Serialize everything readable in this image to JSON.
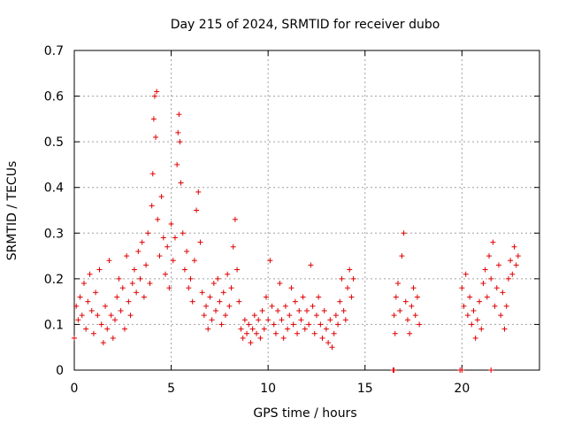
{
  "chart_data": {
    "type": "scatter",
    "title": "Day 215 of 2024, SRMTID for receiver dubo",
    "xlabel": "GPS time / hours",
    "ylabel": "SRMTID / TECUs",
    "xlim": [
      0,
      24
    ],
    "ylim": [
      0,
      0.7
    ],
    "xticks": [
      0,
      5,
      10,
      15,
      20
    ],
    "yticks": [
      0,
      0.1,
      0.2,
      0.3,
      0.4,
      0.5,
      0.6,
      0.7
    ],
    "xtick_labels": [
      "0",
      "5",
      "10",
      "15",
      "20"
    ],
    "ytick_labels": [
      "0",
      "0.1",
      "0.2",
      "0.3",
      "0.4",
      "0.5",
      "0.6",
      "0.7"
    ],
    "grid": true,
    "marker": "+",
    "series_color": "#e00000",
    "series": [
      {
        "name": "SRMTID",
        "points": [
          [
            0.0,
            0.07
          ],
          [
            0.1,
            0.14
          ],
          [
            0.2,
            0.11
          ],
          [
            0.3,
            0.16
          ],
          [
            0.4,
            0.12
          ],
          [
            0.5,
            0.19
          ],
          [
            0.6,
            0.09
          ],
          [
            0.7,
            0.15
          ],
          [
            0.8,
            0.21
          ],
          [
            0.9,
            0.13
          ],
          [
            1.0,
            0.08
          ],
          [
            1.1,
            0.17
          ],
          [
            1.2,
            0.12
          ],
          [
            1.3,
            0.22
          ],
          [
            1.4,
            0.1
          ],
          [
            1.5,
            0.06
          ],
          [
            1.6,
            0.14
          ],
          [
            1.7,
            0.09
          ],
          [
            1.8,
            0.24
          ],
          [
            1.9,
            0.12
          ],
          [
            2.0,
            0.07
          ],
          [
            2.1,
            0.11
          ],
          [
            2.2,
            0.16
          ],
          [
            2.3,
            0.2
          ],
          [
            2.4,
            0.13
          ],
          [
            2.5,
            0.18
          ],
          [
            2.6,
            0.09
          ],
          [
            2.7,
            0.25
          ],
          [
            2.8,
            0.15
          ],
          [
            2.9,
            0.12
          ],
          [
            3.0,
            0.19
          ],
          [
            3.1,
            0.22
          ],
          [
            3.2,
            0.17
          ],
          [
            3.3,
            0.26
          ],
          [
            3.4,
            0.2
          ],
          [
            3.5,
            0.28
          ],
          [
            3.6,
            0.16
          ],
          [
            3.7,
            0.23
          ],
          [
            3.8,
            0.3
          ],
          [
            3.9,
            0.19
          ],
          [
            4.0,
            0.36
          ],
          [
            4.05,
            0.43
          ],
          [
            4.1,
            0.55
          ],
          [
            4.15,
            0.6
          ],
          [
            4.2,
            0.51
          ],
          [
            4.25,
            0.61
          ],
          [
            4.3,
            0.33
          ],
          [
            4.4,
            0.25
          ],
          [
            4.5,
            0.38
          ],
          [
            4.6,
            0.29
          ],
          [
            4.7,
            0.21
          ],
          [
            4.8,
            0.27
          ],
          [
            4.9,
            0.18
          ],
          [
            5.0,
            0.32
          ],
          [
            5.1,
            0.24
          ],
          [
            5.2,
            0.29
          ],
          [
            5.3,
            0.45
          ],
          [
            5.35,
            0.52
          ],
          [
            5.4,
            0.56
          ],
          [
            5.45,
            0.5
          ],
          [
            5.5,
            0.41
          ],
          [
            5.6,
            0.3
          ],
          [
            5.7,
            0.22
          ],
          [
            5.8,
            0.26
          ],
          [
            5.9,
            0.18
          ],
          [
            6.0,
            0.2
          ],
          [
            6.1,
            0.15
          ],
          [
            6.2,
            0.24
          ],
          [
            6.3,
            0.35
          ],
          [
            6.4,
            0.39
          ],
          [
            6.5,
            0.28
          ],
          [
            6.6,
            0.17
          ],
          [
            6.7,
            0.12
          ],
          [
            6.8,
            0.14
          ],
          [
            6.9,
            0.09
          ],
          [
            7.0,
            0.16
          ],
          [
            7.1,
            0.11
          ],
          [
            7.2,
            0.19
          ],
          [
            7.3,
            0.13
          ],
          [
            7.4,
            0.2
          ],
          [
            7.5,
            0.15
          ],
          [
            7.6,
            0.1
          ],
          [
            7.7,
            0.17
          ],
          [
            7.8,
            0.12
          ],
          [
            7.9,
            0.21
          ],
          [
            8.0,
            0.14
          ],
          [
            8.1,
            0.18
          ],
          [
            8.2,
            0.27
          ],
          [
            8.3,
            0.33
          ],
          [
            8.4,
            0.22
          ],
          [
            8.5,
            0.15
          ],
          [
            8.6,
            0.09
          ],
          [
            8.7,
            0.07
          ],
          [
            8.8,
            0.11
          ],
          [
            8.9,
            0.08
          ],
          [
            9.0,
            0.1
          ],
          [
            9.1,
            0.06
          ],
          [
            9.2,
            0.09
          ],
          [
            9.3,
            0.12
          ],
          [
            9.4,
            0.08
          ],
          [
            9.5,
            0.11
          ],
          [
            9.6,
            0.07
          ],
          [
            9.7,
            0.13
          ],
          [
            9.8,
            0.09
          ],
          [
            9.9,
            0.16
          ],
          [
            10.0,
            0.11
          ],
          [
            10.1,
            0.24
          ],
          [
            10.2,
            0.14
          ],
          [
            10.3,
            0.1
          ],
          [
            10.4,
            0.08
          ],
          [
            10.5,
            0.13
          ],
          [
            10.6,
            0.19
          ],
          [
            10.7,
            0.11
          ],
          [
            10.8,
            0.07
          ],
          [
            10.9,
            0.14
          ],
          [
            11.0,
            0.09
          ],
          [
            11.1,
            0.12
          ],
          [
            11.2,
            0.18
          ],
          [
            11.3,
            0.1
          ],
          [
            11.4,
            0.15
          ],
          [
            11.5,
            0.08
          ],
          [
            11.6,
            0.13
          ],
          [
            11.7,
            0.11
          ],
          [
            11.8,
            0.16
          ],
          [
            11.9,
            0.09
          ],
          [
            12.0,
            0.13
          ],
          [
            12.1,
            0.1
          ],
          [
            12.2,
            0.23
          ],
          [
            12.3,
            0.14
          ],
          [
            12.4,
            0.08
          ],
          [
            12.5,
            0.12
          ],
          [
            12.6,
            0.16
          ],
          [
            12.7,
            0.1
          ],
          [
            12.8,
            0.07
          ],
          [
            12.9,
            0.13
          ],
          [
            13.0,
            0.09
          ],
          [
            13.1,
            0.06
          ],
          [
            13.2,
            0.11
          ],
          [
            13.3,
            0.05
          ],
          [
            13.4,
            0.08
          ],
          [
            13.5,
            0.12
          ],
          [
            13.6,
            0.1
          ],
          [
            13.7,
            0.15
          ],
          [
            13.8,
            0.2
          ],
          [
            13.9,
            0.13
          ],
          [
            14.0,
            0.11
          ],
          [
            14.1,
            0.18
          ],
          [
            14.2,
            0.22
          ],
          [
            14.3,
            0.16
          ],
          [
            14.4,
            0.2
          ],
          [
            16.5,
            0.12
          ],
          [
            16.55,
            0.08
          ],
          [
            16.6,
            0.16
          ],
          [
            16.7,
            0.19
          ],
          [
            16.8,
            0.13
          ],
          [
            16.9,
            0.25
          ],
          [
            17.0,
            0.3
          ],
          [
            17.1,
            0.15
          ],
          [
            17.2,
            0.11
          ],
          [
            17.3,
            0.08
          ],
          [
            17.4,
            0.14
          ],
          [
            17.5,
            0.18
          ],
          [
            17.6,
            0.12
          ],
          [
            17.7,
            0.16
          ],
          [
            17.8,
            0.1
          ],
          [
            20.0,
            0.18
          ],
          [
            20.1,
            0.14
          ],
          [
            20.2,
            0.21
          ],
          [
            20.3,
            0.12
          ],
          [
            20.4,
            0.16
          ],
          [
            20.5,
            0.1
          ],
          [
            20.6,
            0.13
          ],
          [
            20.7,
            0.07
          ],
          [
            20.8,
            0.11
          ],
          [
            20.9,
            0.15
          ],
          [
            21.0,
            0.09
          ],
          [
            21.1,
            0.19
          ],
          [
            21.2,
            0.22
          ],
          [
            21.3,
            0.16
          ],
          [
            21.4,
            0.25
          ],
          [
            21.5,
            0.2
          ],
          [
            21.6,
            0.28
          ],
          [
            21.7,
            0.14
          ],
          [
            21.8,
            0.18
          ],
          [
            21.9,
            0.23
          ],
          [
            22.0,
            0.12
          ],
          [
            22.1,
            0.17
          ],
          [
            22.2,
            0.09
          ],
          [
            22.3,
            0.14
          ],
          [
            22.4,
            0.2
          ],
          [
            22.5,
            0.24
          ],
          [
            22.6,
            0.21
          ],
          [
            22.7,
            0.27
          ],
          [
            22.8,
            0.23
          ],
          [
            22.9,
            0.25
          ],
          [
            16.45,
            0.0
          ],
          [
            16.5,
            0.0
          ],
          [
            19.9,
            0.0
          ],
          [
            20.0,
            0.0
          ],
          [
            21.5,
            0.0
          ]
        ]
      }
    ]
  }
}
